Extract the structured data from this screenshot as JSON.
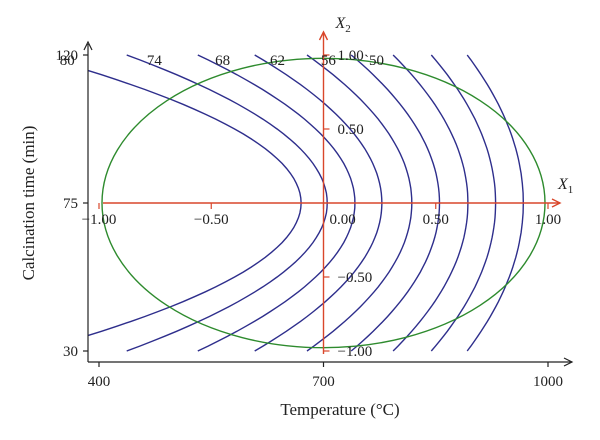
{
  "colors": {
    "axis": "#222222",
    "coded_axis": "#d9472b",
    "contour": "#2e2e8c",
    "ellipse": "#2e8b2e",
    "background": "#ffffff"
  },
  "chart_data": {
    "type": "contour",
    "title": "",
    "xlabel": "Temperature (°C)",
    "ylabel": "Calcination time (min)",
    "xlim": [
      400,
      1000
    ],
    "ylim": [
      30,
      120
    ],
    "x_ticks": [
      400,
      700,
      1000
    ],
    "x_tick_labels": [
      "400",
      "700",
      "1000"
    ],
    "y_ticks": [
      30,
      75,
      120
    ],
    "y_tick_labels": [
      "30",
      "75",
      "120"
    ],
    "grid": false,
    "coded_axes": {
      "x_name": "X",
      "x_sub": "1",
      "y_name": "X",
      "y_sub": "2",
      "x_ticks": [
        -1.0,
        -0.5,
        0.0,
        0.5,
        1.0
      ],
      "x_tick_labels": [
        "−1.00",
        "−0.50",
        "0.00",
        "0.50",
        "1.00"
      ],
      "y_ticks": [
        1.0,
        0.5,
        -0.5,
        -1.0
      ],
      "y_tick_labels": [
        "1.00",
        "0.50",
        "−0.50",
        "−1.00"
      ]
    },
    "contour_levels": [
      80,
      74,
      68,
      62,
      56,
      50
    ],
    "contour_labels": [
      "80",
      "74",
      "68",
      "62",
      "56",
      "`50"
    ],
    "contours": [
      {
        "level": 80,
        "x_at_center": 670,
        "curvature": 355
      },
      {
        "level": 74,
        "x_at_center": 705,
        "curvature": 268
      },
      {
        "level": 68,
        "x_at_center": 742,
        "curvature": 210
      },
      {
        "level": 62,
        "x_at_center": 778,
        "curvature": 170
      },
      {
        "level": 56,
        "x_at_center": 818,
        "curvature": 140
      },
      {
        "level": 50,
        "x_at_center": 855,
        "curvature": 118
      },
      {
        "level": null,
        "x_at_center": 893,
        "curvature": 100
      },
      {
        "level": null,
        "x_at_center": 930,
        "curvature": 86
      },
      {
        "level": null,
        "x_at_center": 967,
        "curvature": 75
      }
    ],
    "design_region": {
      "shape": "ellipse",
      "x_center": 700,
      "y_center": 75,
      "x_semi_axis": 296,
      "y_semi_axis": 44
    }
  }
}
